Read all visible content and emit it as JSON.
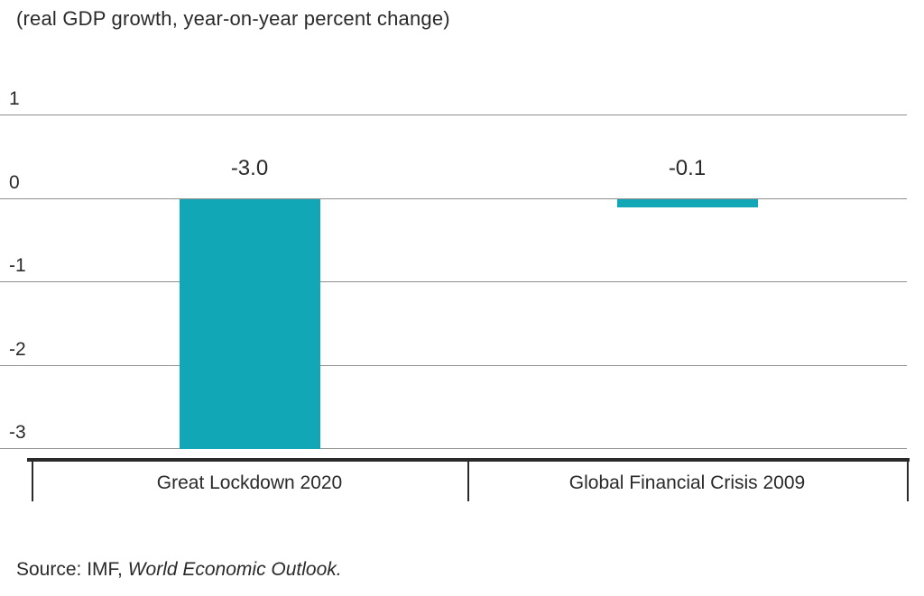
{
  "chart": {
    "subtitle": "(real GDP growth, year-on-year percent change)",
    "source_prefix": "Source: IMF, ",
    "source_italic": "World Economic Outlook."
  },
  "chart_data": {
    "type": "bar",
    "categories": [
      "Great Lockdown 2020",
      "Global Financial Crisis 2009"
    ],
    "values": [
      -3.0,
      -0.1
    ],
    "data_labels": [
      "-3.0",
      "-0.1"
    ],
    "title": "(real GDP growth, year-on-year percent change)",
    "xlabel": "",
    "ylabel": "",
    "ylim": [
      -3,
      1
    ],
    "yticks": [
      1,
      0,
      -1,
      -2,
      -3
    ],
    "grid": true,
    "legend": "none",
    "colors": {
      "bar": "#12a7b6",
      "grid": "#8f8f8f",
      "axis": "#2a2a2a",
      "text": "#2a2a2a"
    }
  }
}
